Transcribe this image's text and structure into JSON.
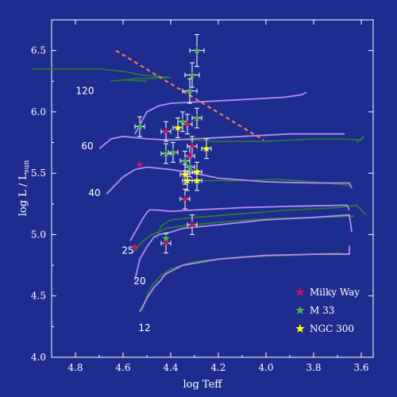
{
  "chart_data": {
    "type": "scatter",
    "x_reversed": true,
    "xlim": [
      4.9,
      3.55
    ],
    "ylim": [
      4.0,
      6.75
    ],
    "xlabel": "log Teff",
    "ylabel_main": "log L / L",
    "ylabel_sub": "sun",
    "x_ticks": [
      {
        "value": 4.8,
        "label": "4.8"
      },
      {
        "value": 4.6,
        "label": "4.6"
      },
      {
        "value": 4.4,
        "label": "4.4"
      },
      {
        "value": 4.2,
        "label": "4.2"
      },
      {
        "value": 4.0,
        "label": "4.0"
      },
      {
        "value": 3.8,
        "label": "3.8"
      },
      {
        "value": 3.6,
        "label": "3.6"
      }
    ],
    "y_ticks": [
      {
        "value": 4.0,
        "label": "4.0"
      },
      {
        "value": 4.5,
        "label": "4.5"
      },
      {
        "value": 5.0,
        "label": "5.0"
      },
      {
        "value": 5.5,
        "label": "5.5"
      },
      {
        "value": 6.0,
        "label": "6.0"
      },
      {
        "value": 6.5,
        "label": "6.5"
      }
    ],
    "colors": {
      "background": "#1f2c8f",
      "axes": "#ffffff",
      "track_purple": "#b48cf0",
      "track_green": "#2e7d32",
      "milky_way": "#c2185b",
      "m33": "#4caf50",
      "ngc300": "#ffff00",
      "error_bars": "#ffffff",
      "hd_limit": "#ff7f50"
    },
    "hd_limit": {
      "points": [
        [
          4.63,
          6.5
        ],
        [
          4.01,
          5.77
        ]
      ]
    },
    "mass_labels": [
      {
        "label": "120",
        "x": 4.76,
        "y": 6.17
      },
      {
        "label": "60",
        "x": 4.75,
        "y": 5.72
      },
      {
        "label": "40",
        "x": 4.72,
        "y": 5.34
      },
      {
        "label": "25",
        "x": 4.58,
        "y": 4.87
      },
      {
        "label": "20",
        "x": 4.53,
        "y": 4.62
      },
      {
        "label": "12",
        "x": 4.51,
        "y": 4.24
      }
    ],
    "tracks_purple": [
      [
        [
          4.55,
          5.82
        ],
        [
          4.5,
          6.0
        ],
        [
          4.45,
          6.05
        ],
        [
          4.4,
          6.07
        ],
        [
          4.3,
          6.08
        ],
        [
          4.1,
          6.1
        ],
        [
          3.92,
          6.12
        ],
        [
          3.85,
          6.14
        ],
        [
          3.83,
          6.16
        ]
      ],
      [
        [
          4.7,
          5.7
        ],
        [
          4.65,
          5.78
        ],
        [
          4.6,
          5.8
        ],
        [
          4.5,
          5.78
        ],
        [
          4.4,
          5.77
        ],
        [
          4.3,
          5.78
        ],
        [
          4.1,
          5.8
        ],
        [
          3.9,
          5.82
        ],
        [
          3.67,
          5.82
        ]
      ],
      [
        [
          4.67,
          5.33
        ],
        [
          4.6,
          5.47
        ],
        [
          4.55,
          5.53
        ],
        [
          4.5,
          5.55
        ],
        [
          4.4,
          5.53
        ],
        [
          4.3,
          5.5
        ],
        [
          4.2,
          5.46
        ],
        [
          4.0,
          5.43
        ],
        [
          3.8,
          5.42
        ],
        [
          3.65,
          5.42
        ],
        [
          3.64,
          5.38
        ]
      ],
      [
        [
          4.57,
          4.95
        ],
        [
          4.52,
          5.12
        ],
        [
          4.5,
          5.18
        ],
        [
          4.49,
          5.2
        ],
        [
          4.46,
          5.2
        ],
        [
          4.4,
          5.19
        ],
        [
          4.3,
          5.2
        ],
        [
          4.1,
          5.22
        ],
        [
          3.9,
          5.23
        ],
        [
          3.66,
          5.24
        ],
        [
          3.65,
          5.2
        ]
      ],
      [
        [
          4.55,
          4.63
        ],
        [
          4.53,
          4.8
        ],
        [
          4.5,
          4.9
        ],
        [
          4.47,
          4.98
        ],
        [
          4.45,
          5.0
        ],
        [
          4.4,
          5.02
        ],
        [
          4.35,
          5.05
        ],
        [
          4.2,
          5.08
        ],
        [
          4.0,
          5.12
        ],
        [
          3.8,
          5.14
        ],
        [
          3.65,
          5.16
        ],
        [
          3.64,
          5.02
        ]
      ],
      [
        [
          4.53,
          4.37
        ],
        [
          4.5,
          4.48
        ],
        [
          4.47,
          4.57
        ],
        [
          4.44,
          4.63
        ],
        [
          4.43,
          4.66
        ],
        [
          4.42,
          4.68
        ],
        [
          4.4,
          4.7
        ],
        [
          4.35,
          4.75
        ],
        [
          4.2,
          4.8
        ],
        [
          4.0,
          4.83
        ],
        [
          3.8,
          4.84
        ],
        [
          3.65,
          4.84
        ],
        [
          3.65,
          4.91
        ]
      ]
    ],
    "tracks_green": [
      [
        [
          4.98,
          6.35
        ],
        [
          4.7,
          6.35
        ],
        [
          4.6,
          6.33
        ],
        [
          4.52,
          6.3
        ],
        [
          4.4,
          6.28
        ],
        [
          4.55,
          6.27
        ],
        [
          4.65,
          6.25
        ],
        [
          4.6,
          6.26
        ],
        [
          4.5,
          6.25
        ]
      ],
      [
        [
          4.42,
          5.78
        ],
        [
          4.3,
          5.77
        ],
        [
          4.2,
          5.76
        ],
        [
          4.1,
          5.76
        ],
        [
          4.0,
          5.76
        ],
        [
          3.9,
          5.77
        ],
        [
          3.8,
          5.78
        ],
        [
          3.68,
          5.78
        ],
        [
          3.6,
          5.77
        ],
        [
          3.59,
          5.8
        ],
        [
          3.62,
          5.75
        ]
      ],
      [
        [
          4.3,
          5.44
        ],
        [
          4.1,
          5.44
        ],
        [
          3.95,
          5.45
        ],
        [
          3.8,
          5.43
        ],
        [
          3.65,
          5.4
        ]
      ],
      [
        [
          4.46,
          4.97
        ],
        [
          4.44,
          5.07
        ],
        [
          4.4,
          5.12
        ],
        [
          4.3,
          5.14
        ],
        [
          4.1,
          5.17
        ],
        [
          3.9,
          5.2
        ],
        [
          3.7,
          5.22
        ],
        [
          3.62,
          5.24
        ],
        [
          3.58,
          5.16
        ]
      ],
      [
        [
          4.56,
          4.85
        ],
        [
          4.52,
          4.94
        ],
        [
          4.48,
          5.0
        ],
        [
          4.44,
          5.03
        ],
        [
          4.42,
          5.05
        ],
        [
          4.35,
          5.07
        ],
        [
          4.2,
          5.1
        ],
        [
          4.0,
          5.13
        ],
        [
          3.8,
          5.14
        ],
        [
          3.63,
          5.15
        ]
      ],
      [
        [
          4.52,
          4.38
        ],
        [
          4.5,
          4.5
        ],
        [
          4.48,
          4.58
        ],
        [
          4.45,
          4.65
        ],
        [
          4.43,
          4.68
        ],
        [
          4.4,
          4.72
        ],
        [
          4.3,
          4.78
        ],
        [
          4.1,
          4.82
        ],
        [
          3.9,
          4.83
        ],
        [
          3.7,
          4.85
        ],
        [
          3.66,
          4.84
        ]
      ]
    ],
    "series": [
      {
        "name": "Milky Way",
        "color": "#c2185b",
        "points": [
          {
            "x": 4.42,
            "y": 5.84,
            "xerr": 0.02,
            "yerr": 0.08
          },
          {
            "x": 4.33,
            "y": 5.9,
            "xerr": 0.02,
            "yerr": 0.08
          },
          {
            "x": 4.31,
            "y": 5.72,
            "xerr": 0.02,
            "yerr": 0.08
          },
          {
            "x": 4.32,
            "y": 5.64,
            "xerr": 0.02,
            "yerr": 0.08
          },
          {
            "x": 4.34,
            "y": 5.29,
            "xerr": 0.02,
            "yerr": 0.08
          },
          {
            "x": 4.31,
            "y": 5.08,
            "xerr": 0.02,
            "yerr": 0.08
          },
          {
            "x": 4.42,
            "y": 4.93,
            "xerr": 0.02,
            "yerr": 0.08
          },
          {
            "x": 4.53,
            "y": 5.57
          },
          {
            "x": 4.55,
            "y": 4.9
          }
        ]
      },
      {
        "name": "M 33",
        "color": "#4caf50",
        "points": [
          {
            "x": 4.29,
            "y": 6.5,
            "xerr": 0.03,
            "yerr": 0.13
          },
          {
            "x": 4.31,
            "y": 6.3,
            "xerr": 0.03,
            "yerr": 0.1
          },
          {
            "x": 4.32,
            "y": 6.17,
            "xerr": 0.03,
            "yerr": 0.1
          },
          {
            "x": 4.29,
            "y": 5.95,
            "xerr": 0.02,
            "yerr": 0.08
          },
          {
            "x": 4.35,
            "y": 5.92,
            "xerr": 0.02,
            "yerr": 0.08
          },
          {
            "x": 4.53,
            "y": 5.88,
            "xerr": 0.02,
            "yerr": 0.08
          },
          {
            "x": 4.42,
            "y": 5.66,
            "xerr": 0.02,
            "yerr": 0.08
          },
          {
            "x": 4.39,
            "y": 5.67,
            "xerr": 0.02,
            "yerr": 0.08
          },
          {
            "x": 4.34,
            "y": 5.6,
            "xerr": 0.02,
            "yerr": 0.08
          },
          {
            "x": 4.32,
            "y": 5.55,
            "xerr": 0.02,
            "yerr": 0.08
          },
          {
            "x": 4.42,
            "y": 4.97
          }
        ]
      },
      {
        "name": "NGC 300",
        "color": "#ffff00",
        "points": [
          {
            "x": 4.37,
            "y": 5.87,
            "xerr": 0.02,
            "yerr": 0.08
          },
          {
            "x": 4.25,
            "y": 5.7,
            "xerr": 0.02,
            "yerr": 0.08
          },
          {
            "x": 4.34,
            "y": 5.49,
            "xerr": 0.02,
            "yerr": 0.08
          },
          {
            "x": 4.29,
            "y": 5.51,
            "xerr": 0.02,
            "yerr": 0.08
          },
          {
            "x": 4.33,
            "y": 5.44,
            "xerr": 0.02,
            "yerr": 0.08
          },
          {
            "x": 4.29,
            "y": 5.44,
            "xerr": 0.02,
            "yerr": 0.08
          }
        ]
      }
    ],
    "legend": {
      "placement": "bottom-right",
      "entries": [
        {
          "label": "Milky Way",
          "color": "#c2185b"
        },
        {
          "label": "M 33",
          "color": "#4caf50"
        },
        {
          "label": "NGC 300",
          "color": "#ffff00"
        }
      ]
    }
  }
}
